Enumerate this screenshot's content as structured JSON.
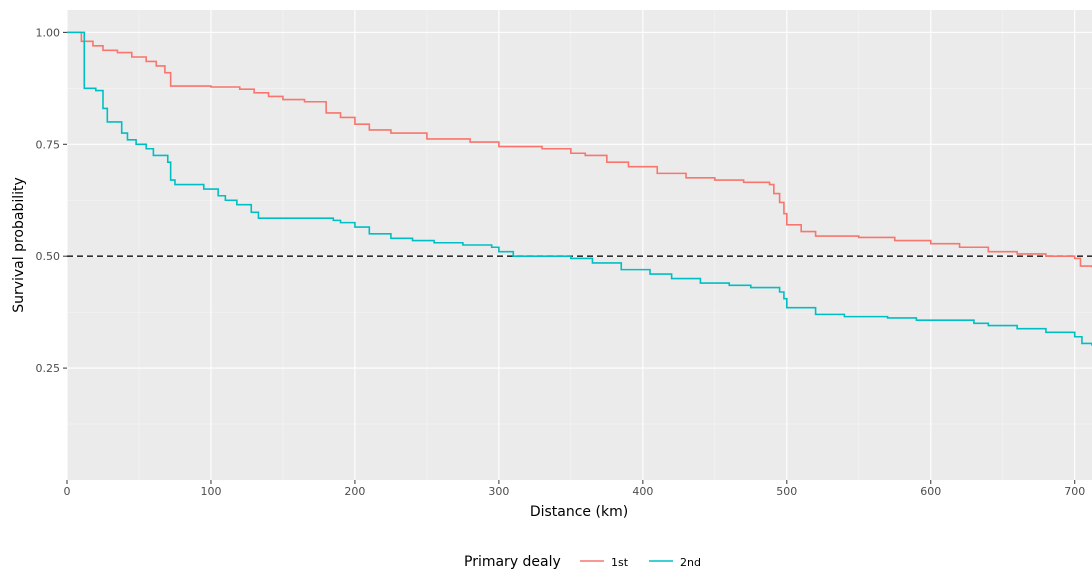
{
  "chart_data": {
    "type": "line",
    "title": "",
    "xlabel": "Distance (km)",
    "ylabel": "Survival probability",
    "xlim": [
      0,
      712
    ],
    "ylim": [
      0.0,
      1.05
    ],
    "x_ticks": [
      0,
      100,
      200,
      300,
      400,
      500,
      600,
      700
    ],
    "x_tick_labels": [
      "0",
      "100",
      "200",
      "300",
      "400",
      "500",
      "600",
      "700"
    ],
    "y_ticks": [
      0.25,
      0.5,
      0.75,
      1.0
    ],
    "y_tick_labels": [
      "0.25",
      "0.50",
      "0.75",
      "1.00"
    ],
    "grid": true,
    "background": "#ebebeb",
    "reference_line": {
      "y": 0.5,
      "style": "dashed",
      "color": "#333333"
    },
    "legend": {
      "title": "Primary dealy",
      "position": "bottom",
      "entries": [
        "1st",
        "2nd"
      ]
    },
    "series": [
      {
        "name": "1st",
        "color": "#f8766d",
        "step": true,
        "x": [
          0,
          10,
          18,
          25,
          35,
          45,
          55,
          62,
          68,
          72,
          100,
          120,
          130,
          140,
          150,
          165,
          180,
          190,
          200,
          210,
          225,
          250,
          280,
          300,
          330,
          350,
          360,
          375,
          390,
          410,
          430,
          450,
          470,
          488,
          491,
          495,
          498,
          500,
          510,
          520,
          550,
          575,
          600,
          620,
          640,
          660,
          680,
          700,
          704,
          712
        ],
        "y": [
          1.0,
          0.98,
          0.97,
          0.96,
          0.955,
          0.945,
          0.935,
          0.925,
          0.91,
          0.88,
          0.878,
          0.873,
          0.865,
          0.857,
          0.85,
          0.845,
          0.82,
          0.81,
          0.795,
          0.782,
          0.775,
          0.762,
          0.755,
          0.745,
          0.74,
          0.73,
          0.725,
          0.71,
          0.7,
          0.685,
          0.675,
          0.67,
          0.665,
          0.66,
          0.64,
          0.62,
          0.595,
          0.57,
          0.555,
          0.545,
          0.542,
          0.535,
          0.528,
          0.52,
          0.51,
          0.505,
          0.5,
          0.495,
          0.478,
          0.475
        ]
      },
      {
        "name": "2nd",
        "color": "#00bfc4",
        "step": true,
        "x": [
          0,
          10,
          12,
          20,
          25,
          28,
          38,
          42,
          48,
          55,
          60,
          70,
          72,
          75,
          95,
          105,
          110,
          118,
          128,
          133,
          185,
          190,
          200,
          210,
          225,
          240,
          255,
          275,
          295,
          300,
          310,
          350,
          365,
          385,
          405,
          420,
          440,
          460,
          475,
          495,
          498,
          500,
          520,
          540,
          570,
          590,
          630,
          640,
          660,
          680,
          700,
          705,
          712
        ],
        "y": [
          1.0,
          1.0,
          0.875,
          0.87,
          0.83,
          0.8,
          0.775,
          0.76,
          0.75,
          0.74,
          0.725,
          0.71,
          0.67,
          0.66,
          0.65,
          0.635,
          0.625,
          0.615,
          0.598,
          0.585,
          0.58,
          0.575,
          0.565,
          0.55,
          0.54,
          0.535,
          0.53,
          0.525,
          0.52,
          0.51,
          0.5,
          0.495,
          0.485,
          0.47,
          0.46,
          0.45,
          0.44,
          0.435,
          0.43,
          0.42,
          0.405,
          0.385,
          0.37,
          0.365,
          0.362,
          0.357,
          0.35,
          0.345,
          0.338,
          0.33,
          0.32,
          0.305,
          0.3
        ]
      }
    ]
  }
}
